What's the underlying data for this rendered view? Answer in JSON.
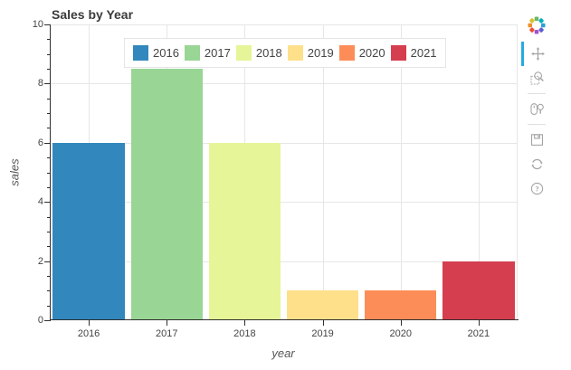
{
  "chart_data": {
    "type": "bar",
    "title": "Sales by Year",
    "categories": [
      "2016",
      "2017",
      "2018",
      "2019",
      "2020",
      "2021"
    ],
    "values": [
      6,
      8.5,
      6,
      1,
      1,
      2
    ],
    "bar_colors": [
      "#3288bd",
      "#99d594",
      "#e6f598",
      "#fee08b",
      "#fc8d59",
      "#d53e4f"
    ],
    "xlabel": "year",
    "ylabel": "sales",
    "ylim": [
      0,
      10
    ],
    "yticks": [
      0,
      2,
      4,
      6,
      8,
      10
    ],
    "ytick_labels": [
      "0",
      "2",
      "4",
      "6",
      "8",
      "10"
    ],
    "minor_tick_step": 0.5,
    "grid": true,
    "legend": {
      "position": "top-center",
      "labels": [
        "2016",
        "2017",
        "2018",
        "2019",
        "2020",
        "2021"
      ]
    }
  },
  "toolbar": {
    "active_color": "#26aae1",
    "tools": [
      {
        "name": "pan",
        "icon": "pan-icon",
        "active": true
      },
      {
        "name": "box-zoom",
        "icon": "box-zoom-icon",
        "active": false
      },
      {
        "name": "wheel-zoom",
        "icon": "wheel-zoom-icon",
        "active": false
      },
      {
        "name": "save",
        "icon": "save-icon",
        "active": false
      },
      {
        "name": "reset",
        "icon": "reset-icon",
        "active": false
      },
      {
        "name": "help",
        "icon": "help-icon",
        "active": false
      }
    ],
    "separators_after": [
      "box-zoom",
      "wheel-zoom"
    ]
  },
  "colors": {
    "grid": "#e6e6e6",
    "axis": "#2f2f2f",
    "tick_label": "#444444",
    "axis_label": "#555555",
    "title": "#3a3a3a"
  }
}
